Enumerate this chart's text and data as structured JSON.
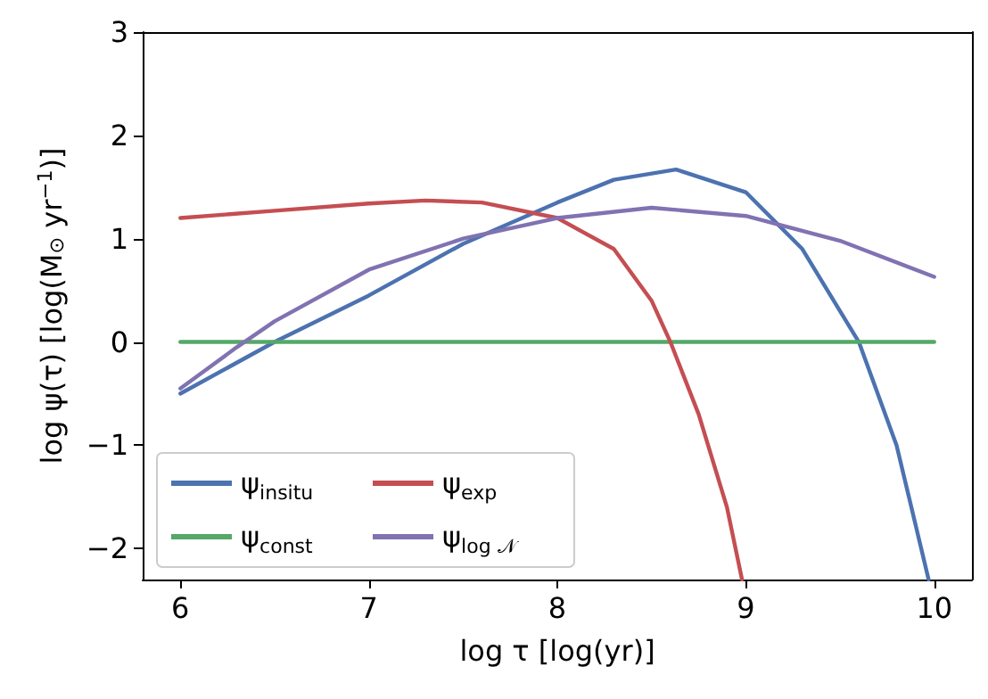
{
  "chart_data": {
    "type": "line",
    "xlabel": "log τ [log(yr)]",
    "ylabel": "log ψ(τ) [log(M$_{⊙}$ yr$^{−1}$)]",
    "xlim": [
      5.8,
      10.2
    ],
    "ylim": [
      -2.3,
      3
    ],
    "xticks": [
      6,
      7,
      8,
      9,
      10
    ],
    "yticks": [
      -2,
      -1,
      0,
      1,
      2,
      3
    ],
    "grid": false,
    "legend": "bottom left",
    "marker": "none",
    "line_style": "solid",
    "series": [
      {
        "name": "ψ$_{insitu}$",
        "color": "#4c72b0",
        "x": [
          6,
          6.5,
          7,
          7.5,
          8,
          8.3,
          8.63,
          9,
          9.3,
          9.6,
          9.8,
          9.97
        ],
        "values": [
          -0.5,
          0,
          0.45,
          0.95,
          1.35,
          1.57,
          1.67,
          1.45,
          0.9,
          0,
          -1,
          -2.3
        ]
      },
      {
        "name": "ψ$_{const}$",
        "color": "#55a868",
        "x": [
          6,
          10
        ],
        "values": [
          0,
          0
        ]
      },
      {
        "name": "ψ$_{exp}$",
        "color": "#c44e52",
        "x": [
          6,
          6.5,
          7,
          7.3,
          7.6,
          8,
          8.3,
          8.5,
          8.6,
          8.75,
          8.9,
          8.98
        ],
        "values": [
          1.2,
          1.27,
          1.34,
          1.37,
          1.35,
          1.2,
          0.9,
          0.4,
          0,
          -0.7,
          -1.6,
          -2.3
        ]
      },
      {
        "name": "ψ$_{log 𝒩}$",
        "color": "#8172b2",
        "x": [
          6,
          6.3,
          6.5,
          7,
          7.5,
          8,
          8.5,
          9,
          9.5,
          10
        ],
        "values": [
          -0.45,
          -0.05,
          0.2,
          0.7,
          1,
          1.2,
          1.3,
          1.22,
          0.98,
          0.63
        ]
      }
    ]
  }
}
